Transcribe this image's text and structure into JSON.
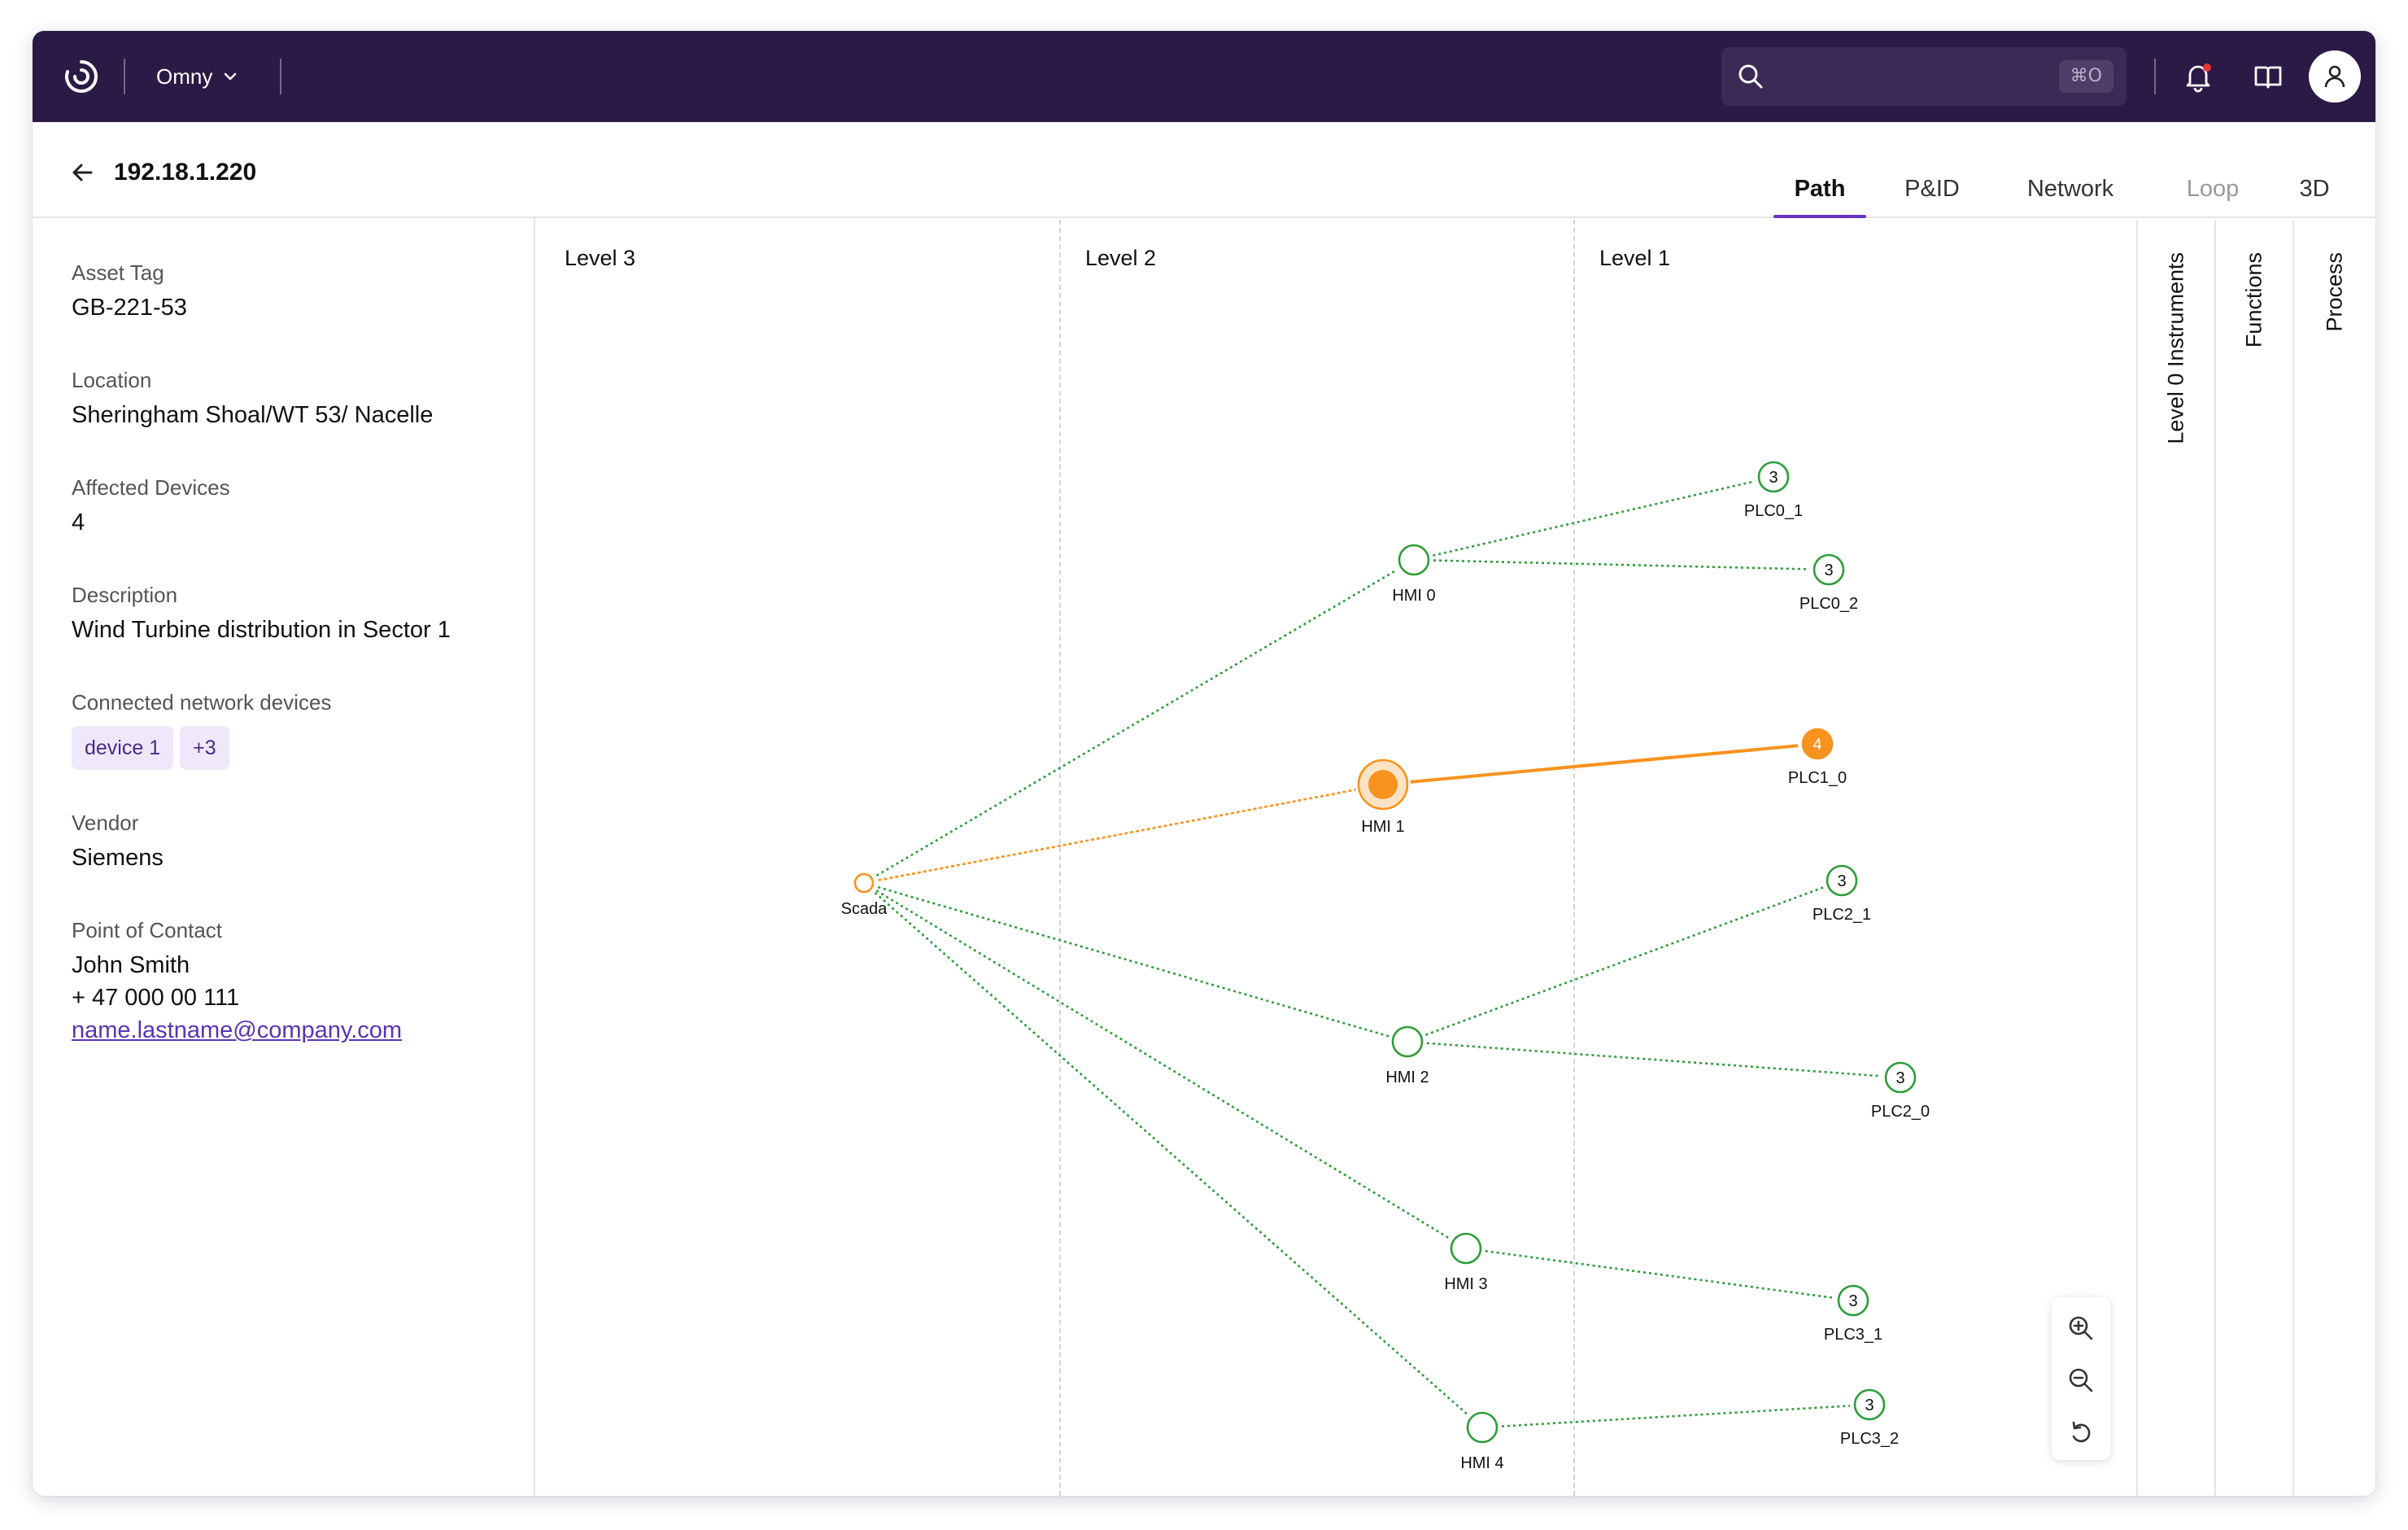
{
  "topbar": {
    "app_name": "Omny",
    "search_placeholder": "",
    "search_shortcut": "⌘O",
    "accent": "#2b1a45"
  },
  "header": {
    "title": "192.18.1.220",
    "tabs": [
      {
        "label": "Path",
        "state": "active"
      },
      {
        "label": "P&ID",
        "state": "normal"
      },
      {
        "label": "Network",
        "state": "normal"
      },
      {
        "label": "Loop",
        "state": "disabled"
      },
      {
        "label": "3D",
        "state": "normal"
      }
    ]
  },
  "details": {
    "asset_tag_label": "Asset Tag",
    "asset_tag": "GB-221-53",
    "location_label": "Location",
    "location": "Sheringham Shoal/WT 53/ Nacelle",
    "affected_devices_label": "Affected Devices",
    "affected_devices": "4",
    "description_label": "Description",
    "description": "Wind Turbine distribution in Sector 1",
    "connected_label": "Connected network devices",
    "connected_chips": [
      "device 1",
      "+3"
    ],
    "vendor_label": "Vendor",
    "vendor": "Siemens",
    "contact_label": "Point of Contact",
    "contact_name": "John Smith",
    "contact_phone": "+ 47 000 00 111",
    "contact_email": "name.lastname@company.com"
  },
  "graph": {
    "levels": [
      "Level 3",
      "Level 2",
      "Level 1"
    ],
    "colors": {
      "normal": "#2e9c3a",
      "alert": "#f7931e"
    },
    "nodes": [
      {
        "id": "scada",
        "label": "Scada",
        "state": "alert-small"
      },
      {
        "id": "hmi0",
        "label": "HMI 0",
        "state": "normal"
      },
      {
        "id": "hmi1",
        "label": "HMI 1",
        "state": "alert"
      },
      {
        "id": "hmi2",
        "label": "HMI 2",
        "state": "normal"
      },
      {
        "id": "hmi3",
        "label": "HMI 3",
        "state": "normal"
      },
      {
        "id": "hmi4",
        "label": "HMI 4",
        "state": "normal"
      },
      {
        "id": "plc0_1",
        "label": "PLC0_1",
        "count": "3",
        "state": "normal"
      },
      {
        "id": "plc0_2",
        "label": "PLC0_2",
        "count": "3",
        "state": "normal"
      },
      {
        "id": "plc1_0",
        "label": "PLC1_0",
        "count": "4",
        "state": "alert"
      },
      {
        "id": "plc2_1",
        "label": "PLC2_1",
        "count": "3",
        "state": "normal"
      },
      {
        "id": "plc2_0",
        "label": "PLC2_0",
        "count": "3",
        "state": "normal"
      },
      {
        "id": "plc3_1",
        "label": "PLC3_1",
        "count": "3",
        "state": "normal"
      },
      {
        "id": "plc3_2",
        "label": "PLC3_2",
        "count": "3",
        "state": "normal"
      }
    ],
    "edges": [
      {
        "from": "scada",
        "to": "hmi0",
        "state": "normal"
      },
      {
        "from": "scada",
        "to": "hmi1",
        "state": "alert"
      },
      {
        "from": "scada",
        "to": "hmi2",
        "state": "normal"
      },
      {
        "from": "scada",
        "to": "hmi3",
        "state": "normal"
      },
      {
        "from": "scada",
        "to": "hmi4",
        "state": "normal"
      },
      {
        "from": "hmi0",
        "to": "plc0_1",
        "state": "normal"
      },
      {
        "from": "hmi0",
        "to": "plc0_2",
        "state": "normal"
      },
      {
        "from": "hmi1",
        "to": "plc1_0",
        "state": "alert-solid"
      },
      {
        "from": "hmi2",
        "to": "plc2_1",
        "state": "normal"
      },
      {
        "from": "hmi2",
        "to": "plc2_0",
        "state": "normal"
      },
      {
        "from": "hmi3",
        "to": "plc3_1",
        "state": "normal"
      },
      {
        "from": "hmi4",
        "to": "plc3_2",
        "state": "normal"
      }
    ]
  },
  "side_tabs": [
    "Level 0 Instruments",
    "Functions",
    "Process"
  ],
  "icons": {
    "logo": "omny-logo-icon",
    "search": "search-icon",
    "notifications": "bell-icon",
    "docs": "book-icon",
    "user": "user-icon",
    "back": "arrow-left-icon",
    "zoom_in": "zoom-in-icon",
    "zoom_out": "zoom-out-icon",
    "reset": "reset-icon"
  }
}
